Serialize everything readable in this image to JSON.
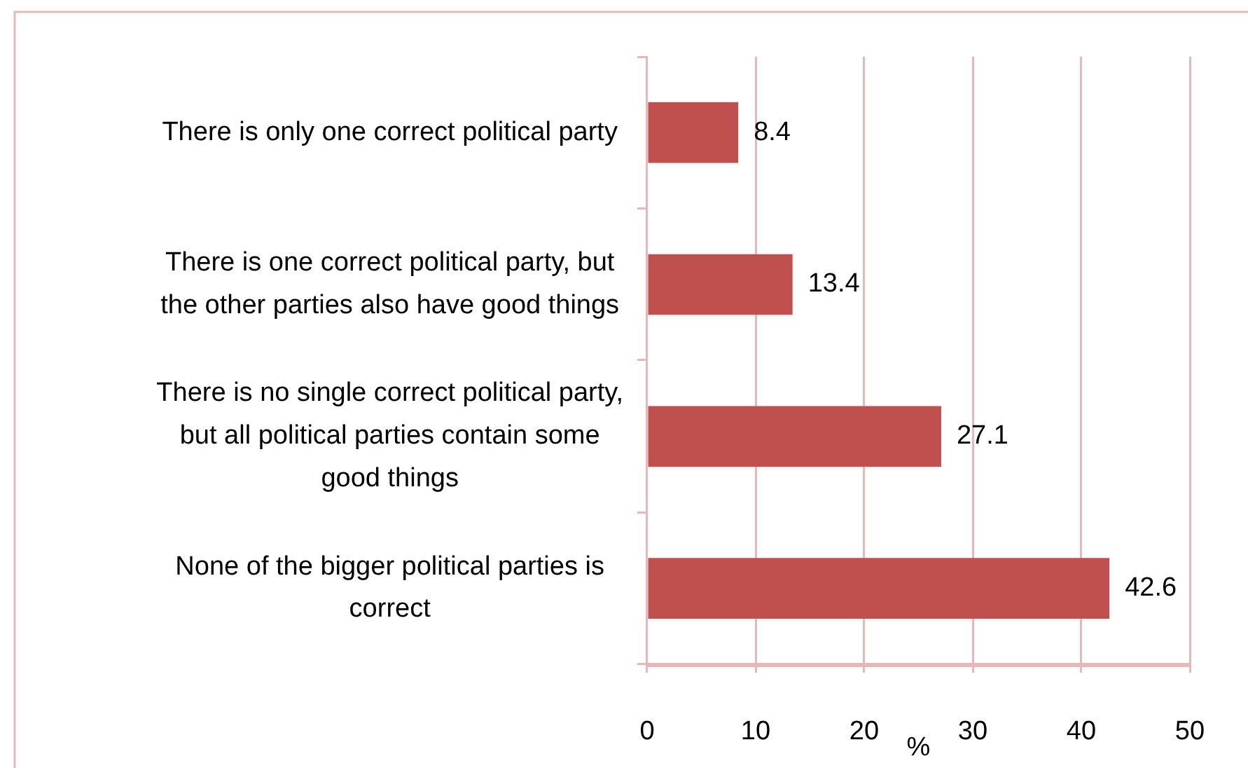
{
  "chart_data": {
    "type": "bar",
    "orientation": "horizontal",
    "categories": [
      "There is only one correct political party",
      "There is one correct political party, but the other parties also have good things",
      "There is no single correct political party, but all political parties contain some good things",
      "None of the bigger political parties is correct"
    ],
    "values": [
      8.4,
      13.4,
      27.1,
      42.6
    ],
    "color": "#c0504d",
    "xlim": [
      0,
      50
    ],
    "xticks": [
      0,
      10,
      20,
      30,
      40,
      50
    ],
    "xlabel": "%",
    "grid": "x",
    "data_labels": true
  }
}
